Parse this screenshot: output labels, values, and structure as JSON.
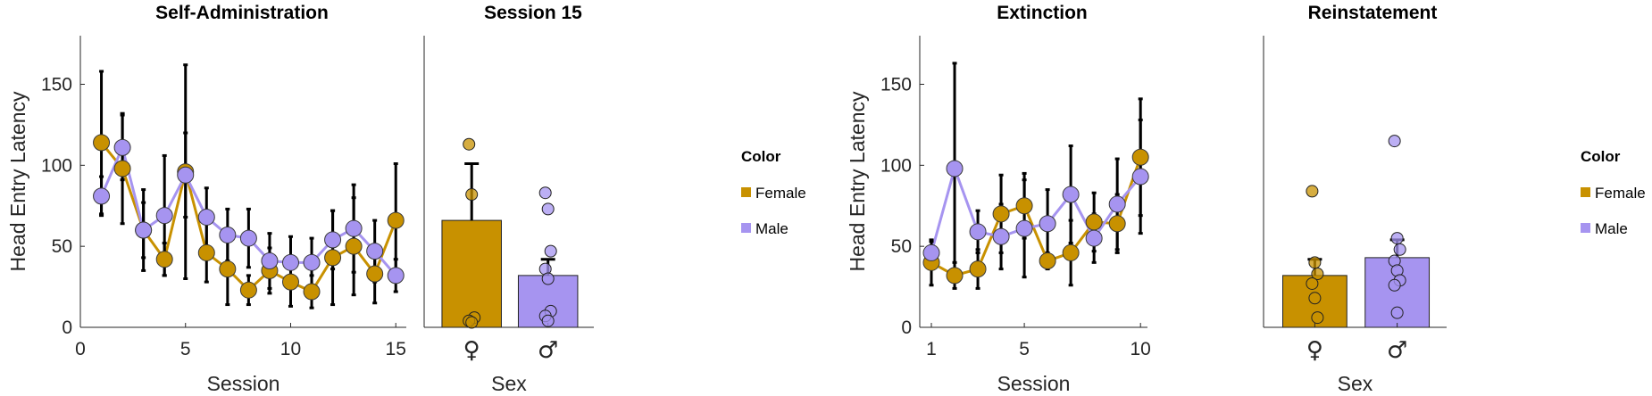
{
  "colors": {
    "female": "#C89100",
    "male": "#A694F0",
    "axis": "#262626",
    "err": "#000000"
  },
  "legend": {
    "title": "Color",
    "items": [
      "Female",
      "Male"
    ]
  },
  "chart_data": [
    {
      "id": "selfadmin",
      "type": "line",
      "title": "Self-Administration",
      "xlabel": "Session",
      "ylabel": "Head Entry Latency",
      "xlim": [
        0,
        15.5
      ],
      "ylim": [
        0,
        180
      ],
      "xticks": [
        0,
        5,
        10,
        15
      ],
      "yticks": [
        0,
        50,
        100,
        150
      ],
      "series": [
        {
          "name": "Female",
          "x": [
            1,
            2,
            3,
            4,
            5,
            6,
            7,
            8,
            9,
            10,
            11,
            12,
            13,
            14,
            15
          ],
          "values": [
            114,
            98,
            60,
            42,
            96,
            46,
            36,
            23,
            35,
            28,
            22,
            43,
            50,
            33,
            66
          ],
          "err": [
            44,
            34,
            25,
            10,
            66,
            18,
            22,
            9,
            14,
            15,
            10,
            29,
            30,
            18,
            35
          ]
        },
        {
          "name": "Male",
          "x": [
            1,
            2,
            3,
            4,
            5,
            6,
            7,
            8,
            9,
            10,
            11,
            12,
            13,
            14,
            15
          ],
          "values": [
            81,
            111,
            60,
            69,
            94,
            68,
            57,
            55,
            41,
            40,
            40,
            54,
            61,
            47,
            32
          ],
          "err": [
            12,
            20,
            17,
            37,
            26,
            18,
            16,
            18,
            17,
            16,
            15,
            18,
            27,
            19,
            10
          ]
        }
      ]
    },
    {
      "id": "session15",
      "type": "bar",
      "title": "Session 15",
      "xlabel": "Sex",
      "ylim": [
        0,
        180
      ],
      "categories": [
        "♀",
        "♂"
      ],
      "values": [
        66,
        32
      ],
      "err": [
        35,
        10
      ],
      "points": [
        [
          113,
          82,
          6,
          4,
          3
        ],
        [
          83,
          73,
          47,
          36,
          30,
          10,
          7,
          4
        ]
      ]
    },
    {
      "id": "extinction",
      "type": "line",
      "title": "Extinction",
      "xlabel": "Session",
      "ylabel": "Head Entry Latency",
      "xlim": [
        0.5,
        10.3
      ],
      "ylim": [
        0,
        180
      ],
      "xticks": [
        1,
        5,
        10
      ],
      "yticks": [
        0,
        50,
        100,
        150
      ],
      "series": [
        {
          "name": "Female",
          "x": [
            1,
            2,
            3,
            4,
            5,
            6,
            7,
            8,
            9,
            10
          ],
          "values": [
            40,
            32,
            36,
            70,
            75,
            41,
            46,
            65,
            64,
            105
          ],
          "err": [
            14,
            8,
            12,
            24,
            20,
            5,
            20,
            18,
            18,
            36
          ]
        },
        {
          "name": "Male",
          "x": [
            1,
            2,
            3,
            4,
            5,
            6,
            7,
            8,
            9,
            10
          ],
          "values": [
            46,
            98,
            59,
            56,
            61,
            64,
            82,
            55,
            76,
            93
          ],
          "err": [
            7,
            65,
            13,
            20,
            30,
            21,
            30,
            15,
            28,
            35
          ]
        }
      ]
    },
    {
      "id": "reinstatement",
      "type": "bar",
      "title": "Reinstatement",
      "xlabel": "Sex",
      "ylim": [
        0,
        180
      ],
      "categories": [
        "♀",
        "♂"
      ],
      "values": [
        32,
        43
      ],
      "err": [
        10,
        11
      ],
      "points": [
        [
          84,
          40,
          33,
          27,
          18,
          6
        ],
        [
          115,
          55,
          48,
          41,
          35,
          29,
          26,
          9
        ]
      ]
    }
  ]
}
